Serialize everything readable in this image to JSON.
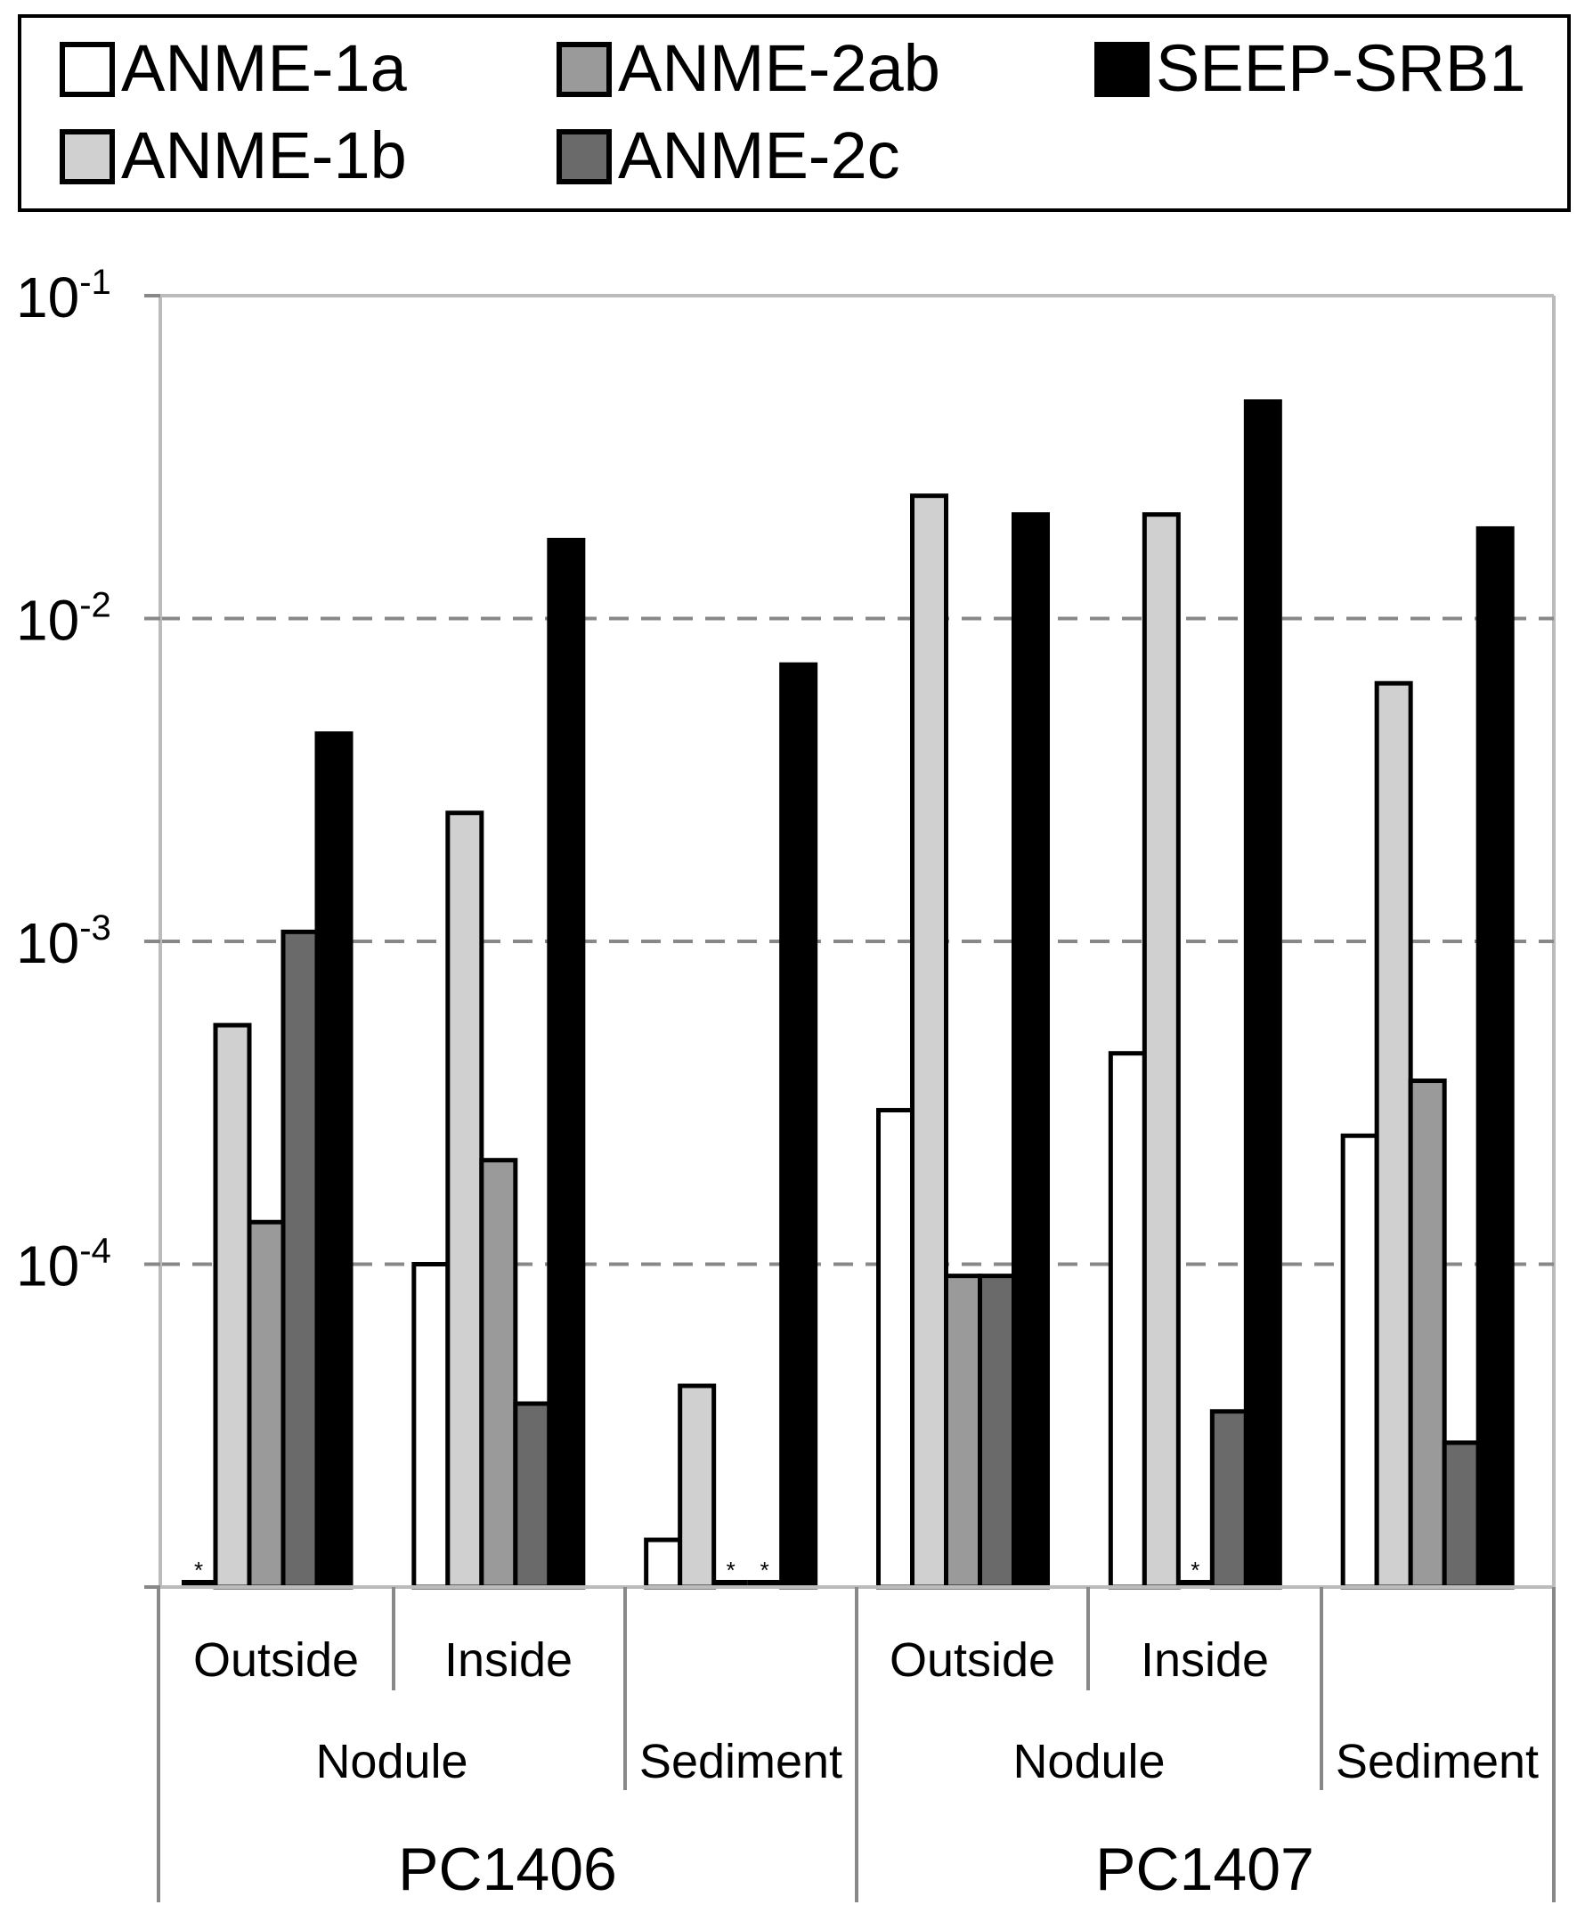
{
  "chart_data": {
    "type": "bar",
    "yscale": "log",
    "ylim": [
      1e-05,
      0.1
    ],
    "yticks": [
      {
        "value": 0.1,
        "base": "10",
        "exp": "-1"
      },
      {
        "value": 0.01,
        "base": "10",
        "exp": "-2"
      },
      {
        "value": 0.001,
        "base": "10",
        "exp": "-3"
      },
      {
        "value": 0.0001,
        "base": "10",
        "exp": "-4"
      }
    ],
    "grid": "horizontal dashed",
    "legend_position": "top",
    "series": [
      {
        "name": "ANME-1a",
        "color": "#ffffff"
      },
      {
        "name": "ANME-1b",
        "color": "#d0d0d0"
      },
      {
        "name": "ANME-2ab",
        "color": "#9a9a9a"
      },
      {
        "name": "ANME-2c",
        "color": "#6a6a6a"
      },
      {
        "name": "SEEP-SRB1",
        "color": "#000000"
      }
    ],
    "groups": [
      {
        "core": "PC1406",
        "sample": "Nodule",
        "position": "Outside",
        "values": [
          null,
          0.00055,
          0.000135,
          0.00107,
          0.0044
        ],
        "not_detected": [
          true,
          false,
          false,
          false,
          false
        ]
      },
      {
        "core": "PC1406",
        "sample": "Nodule",
        "position": "Inside",
        "values": [
          0.0001,
          0.0025,
          0.00021,
          3.7e-05,
          0.0175
        ],
        "not_detected": [
          false,
          false,
          false,
          false,
          false
        ]
      },
      {
        "core": "PC1406",
        "sample": "Sediment",
        "position": "",
        "values": [
          1.4e-05,
          4.2e-05,
          null,
          null,
          0.0072
        ],
        "not_detected": [
          false,
          false,
          true,
          true,
          false
        ]
      },
      {
        "core": "PC1407",
        "sample": "Nodule",
        "position": "Outside",
        "values": [
          0.0003,
          0.024,
          9.2e-05,
          9.2e-05,
          0.021
        ],
        "not_detected": [
          false,
          false,
          false,
          false,
          false
        ]
      },
      {
        "core": "PC1407",
        "sample": "Nodule",
        "position": "Inside",
        "values": [
          0.00045,
          0.021,
          null,
          3.5e-05,
          0.047
        ],
        "not_detected": [
          false,
          false,
          true,
          false,
          false
        ]
      },
      {
        "core": "PC1407",
        "sample": "Sediment",
        "position": "",
        "values": [
          0.00025,
          0.0063,
          0.00037,
          2.8e-05,
          0.019
        ],
        "not_detected": [
          false,
          false,
          false,
          false,
          false
        ]
      }
    ],
    "not_detected_marker": "*",
    "positions": [
      "Outside",
      "Inside",
      "Outside",
      "Inside"
    ],
    "samples": [
      "Nodule",
      "Sediment",
      "Nodule",
      "Sediment"
    ],
    "cores": [
      "PC1406",
      "PC1407"
    ]
  }
}
